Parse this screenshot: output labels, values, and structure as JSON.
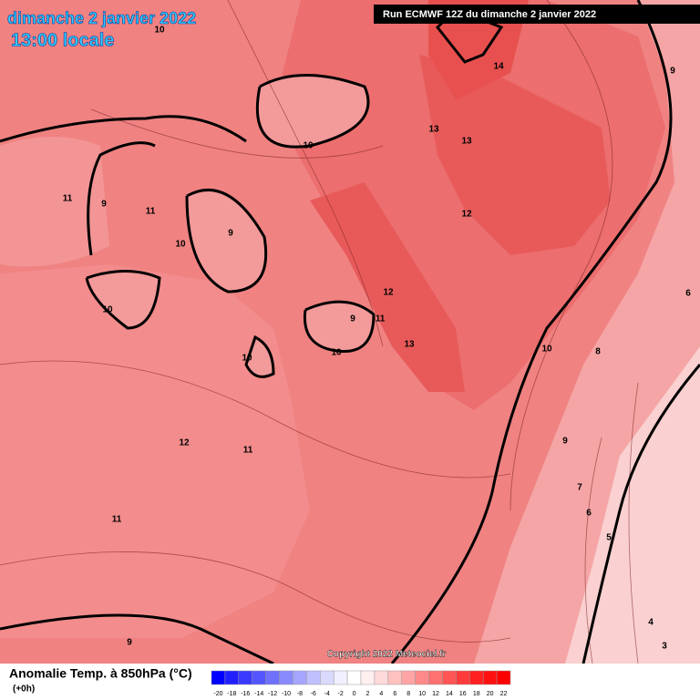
{
  "header": {
    "date": "dimanche 2 janvier 2022",
    "time": "13:00 locale",
    "run": "Run ECMWF 12Z du dimanche 2 janvier 2022"
  },
  "copyright": "Copyright 2022 Meteociel.fr",
  "footer": {
    "title": "Anomalie Temp. à 850hPa (°C)",
    "step": "(+0h)"
  },
  "legend": {
    "ticks": [
      -20,
      -18,
      -16,
      -14,
      -12,
      -10,
      -8,
      -6,
      -4,
      -2,
      0,
      2,
      4,
      6,
      8,
      10,
      12,
      14,
      16,
      18,
      20,
      22
    ],
    "colors": [
      "#0000ff",
      "#2020ff",
      "#3a3aff",
      "#5555ff",
      "#7070ff",
      "#8a8aff",
      "#a5a5ff",
      "#c0c0ff",
      "#dadaff",
      "#f0f0ff",
      "#ffffff",
      "#fff0f0",
      "#ffdada",
      "#ffc0c0",
      "#ffa5a5",
      "#ff8a8a",
      "#ff7070",
      "#ff5555",
      "#ff3a3a",
      "#ff2020",
      "#ff1010",
      "#ff0000"
    ]
  },
  "contour_labels": [
    "10",
    "14",
    "9",
    "13",
    "13",
    "10",
    "11",
    "9",
    "11",
    "12",
    "9",
    "10",
    "6",
    "12",
    "10",
    "9",
    "11",
    "13",
    "10",
    "10",
    "8",
    "10",
    "12",
    "11",
    "9",
    "7",
    "6",
    "11",
    "5",
    "4",
    "9",
    "3"
  ]
}
